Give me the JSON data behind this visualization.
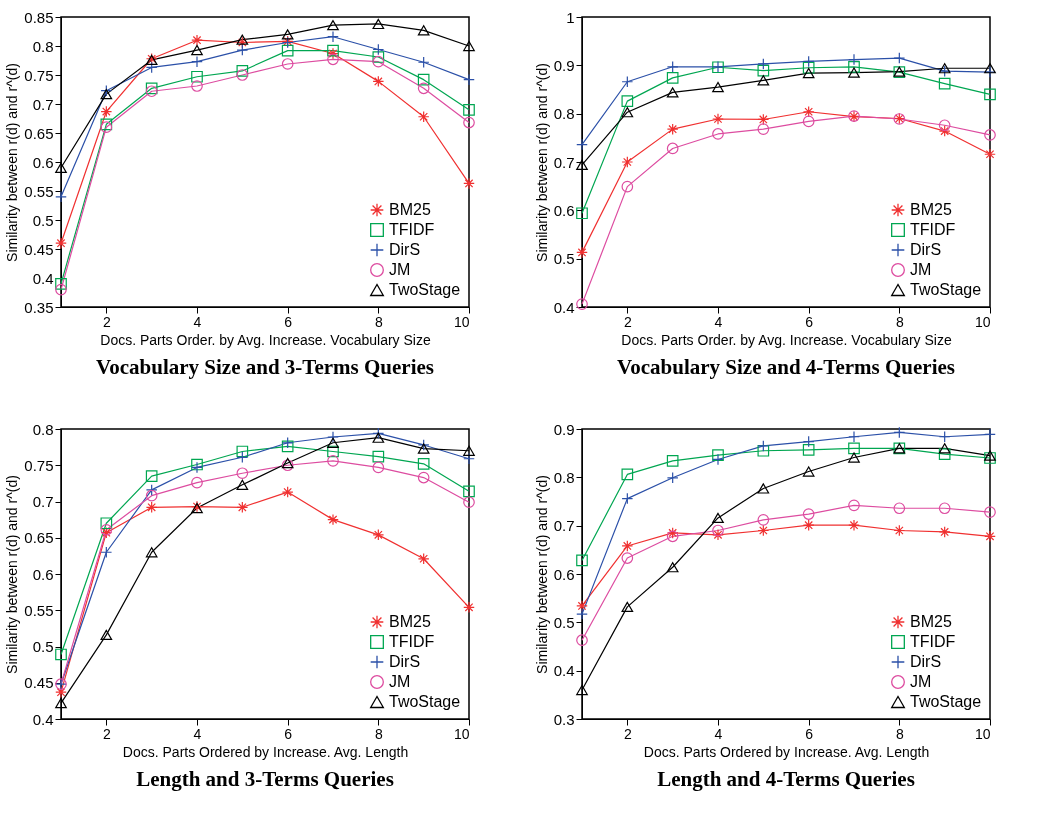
{
  "chart_data": [
    {
      "type": "line",
      "title": "Vocabulary Size and 3-Terms Queries",
      "xlabel": "Docs. Parts Order. by Avg. Increase. Vocabulary Size",
      "ylabel": "Similarity between r(d) and r^(d)",
      "x": [
        1,
        2,
        3,
        4,
        5,
        6,
        7,
        8,
        9,
        10
      ],
      "xlim": [
        1,
        10
      ],
      "xticks": [
        2,
        4,
        6,
        8,
        10
      ],
      "ylim": [
        0.35,
        0.85
      ],
      "yticks": [
        0.35,
        0.4,
        0.45,
        0.5,
        0.55,
        0.6,
        0.65,
        0.7,
        0.75,
        0.8,
        0.85
      ],
      "legend": "bottom right",
      "series": [
        {
          "name": "BM25",
          "color": "#f03030",
          "marker": "cross",
          "values": [
            0.46,
            0.687,
            0.778,
            0.81,
            0.806,
            0.808,
            0.787,
            0.739,
            0.678,
            0.563
          ]
        },
        {
          "name": "TFIDF",
          "color": "#00a651",
          "marker": "square",
          "values": [
            0.39,
            0.665,
            0.727,
            0.747,
            0.757,
            0.792,
            0.792,
            0.781,
            0.742,
            0.69
          ]
        },
        {
          "name": "DirS",
          "color": "#2b50a8",
          "marker": "cross",
          "values": [
            0.54,
            0.723,
            0.763,
            0.773,
            0.793,
            0.806,
            0.816,
            0.794,
            0.772,
            0.742
          ]
        },
        {
          "name": "JM",
          "color": "#dd4ca0",
          "marker": "circle",
          "values": [
            0.38,
            0.66,
            0.722,
            0.731,
            0.75,
            0.769,
            0.777,
            0.773,
            0.727,
            0.668
          ]
        },
        {
          "name": "TwoStage",
          "color": "#000000",
          "marker": "triangle",
          "values": [
            0.59,
            0.717,
            0.776,
            0.793,
            0.811,
            0.82,
            0.836,
            0.838,
            0.827,
            0.8
          ]
        }
      ]
    },
    {
      "type": "line",
      "title": "Vocabulary Size and 4-Terms Queries",
      "xlabel": "Docs. Parts Order. by Avg. Increase. Vocabulary Size",
      "ylabel": "Similarity between r(d) and r^(d)",
      "x": [
        1,
        2,
        3,
        4,
        5,
        6,
        7,
        8,
        9,
        10
      ],
      "xlim": [
        1,
        10
      ],
      "xticks": [
        2,
        4,
        6,
        8,
        10
      ],
      "ylim": [
        0.4,
        1
      ],
      "yticks": [
        0.4,
        0.5,
        0.6,
        0.7,
        0.8,
        0.9,
        1
      ],
      "legend": "bottom right",
      "series": [
        {
          "name": "BM25",
          "color": "#f03030",
          "marker": "cross",
          "values": [
            0.513,
            0.7,
            0.768,
            0.789,
            0.788,
            0.804,
            0.794,
            0.79,
            0.764,
            0.716
          ]
        },
        {
          "name": "TFIDF",
          "color": "#00a651",
          "marker": "square",
          "values": [
            0.594,
            0.826,
            0.874,
            0.896,
            0.889,
            0.895,
            0.897,
            0.886,
            0.862,
            0.84
          ]
        },
        {
          "name": "DirS",
          "color": "#2b50a8",
          "marker": "cross",
          "values": [
            0.736,
            0.866,
            0.897,
            0.897,
            0.903,
            0.908,
            0.912,
            0.915,
            0.888,
            0.886
          ]
        },
        {
          "name": "JM",
          "color": "#dd4ca0",
          "marker": "circle",
          "values": [
            0.406,
            0.649,
            0.728,
            0.758,
            0.768,
            0.784,
            0.795,
            0.789,
            0.776,
            0.756
          ]
        },
        {
          "name": "TwoStage",
          "color": "#000000",
          "marker": "triangle",
          "values": [
            0.694,
            0.803,
            0.844,
            0.855,
            0.869,
            0.884,
            0.885,
            0.887,
            0.894,
            0.894
          ]
        }
      ]
    },
    {
      "type": "line",
      "title": "Length and 3-Terms Queries",
      "xlabel": "Docs. Parts Ordered by Increase. Avg. Length",
      "ylabel": "Similarity between r(d) and r^(d)",
      "x": [
        1,
        2,
        3,
        4,
        5,
        6,
        7,
        8,
        9,
        10
      ],
      "xlim": [
        1,
        10
      ],
      "xticks": [
        2,
        4,
        6,
        8,
        10
      ],
      "ylim": [
        0.4,
        0.8
      ],
      "yticks": [
        0.4,
        0.45,
        0.5,
        0.55,
        0.6,
        0.65,
        0.7,
        0.75,
        0.8
      ],
      "legend": "bottom right",
      "series": [
        {
          "name": "BM25",
          "color": "#f03030",
          "marker": "cross",
          "values": [
            0.437,
            0.657,
            0.692,
            0.693,
            0.692,
            0.713,
            0.675,
            0.654,
            0.621,
            0.554
          ]
        },
        {
          "name": "TFIDF",
          "color": "#00a651",
          "marker": "square",
          "values": [
            0.489,
            0.67,
            0.735,
            0.751,
            0.769,
            0.776,
            0.769,
            0.762,
            0.752,
            0.714
          ]
        },
        {
          "name": "DirS",
          "color": "#2b50a8",
          "marker": "cross",
          "values": [
            0.448,
            0.63,
            0.716,
            0.747,
            0.761,
            0.781,
            0.789,
            0.794,
            0.778,
            0.759
          ]
        },
        {
          "name": "JM",
          "color": "#dd4ca0",
          "marker": "circle",
          "values": [
            0.448,
            0.661,
            0.708,
            0.726,
            0.739,
            0.75,
            0.756,
            0.747,
            0.733,
            0.699
          ]
        },
        {
          "name": "TwoStage",
          "color": "#000000",
          "marker": "triangle",
          "values": [
            0.422,
            0.516,
            0.63,
            0.691,
            0.723,
            0.753,
            0.781,
            0.788,
            0.773,
            0.77
          ]
        }
      ]
    },
    {
      "type": "line",
      "title": "Length and 4-Terms Queries",
      "xlabel": "Docs. Parts Ordered by Increase. Avg. Length",
      "ylabel": "Similarity between r(d) and r^(d)",
      "x": [
        1,
        2,
        3,
        4,
        5,
        6,
        7,
        8,
        9,
        10
      ],
      "xlim": [
        1,
        10
      ],
      "xticks": [
        2,
        4,
        6,
        8,
        10
      ],
      "ylim": [
        0.3,
        0.9
      ],
      "yticks": [
        0.3,
        0.4,
        0.5,
        0.6,
        0.7,
        0.8,
        0.9
      ],
      "legend": "bottom right",
      "series": [
        {
          "name": "BM25",
          "color": "#f03030",
          "marker": "cross",
          "values": [
            0.534,
            0.658,
            0.685,
            0.681,
            0.69,
            0.701,
            0.701,
            0.69,
            0.687,
            0.678
          ]
        },
        {
          "name": "TFIDF",
          "color": "#00a651",
          "marker": "square",
          "values": [
            0.628,
            0.806,
            0.834,
            0.846,
            0.855,
            0.857,
            0.86,
            0.86,
            0.848,
            0.84
          ]
        },
        {
          "name": "DirS",
          "color": "#2b50a8",
          "marker": "cross",
          "values": [
            0.517,
            0.756,
            0.799,
            0.837,
            0.865,
            0.874,
            0.884,
            0.893,
            0.884,
            0.889
          ]
        },
        {
          "name": "JM",
          "color": "#dd4ca0",
          "marker": "circle",
          "values": [
            0.463,
            0.633,
            0.678,
            0.69,
            0.712,
            0.724,
            0.742,
            0.736,
            0.736,
            0.728
          ]
        },
        {
          "name": "TwoStage",
          "color": "#000000",
          "marker": "triangle",
          "values": [
            0.36,
            0.532,
            0.614,
            0.716,
            0.777,
            0.812,
            0.841,
            0.86,
            0.86,
            0.845
          ]
        }
      ]
    }
  ]
}
